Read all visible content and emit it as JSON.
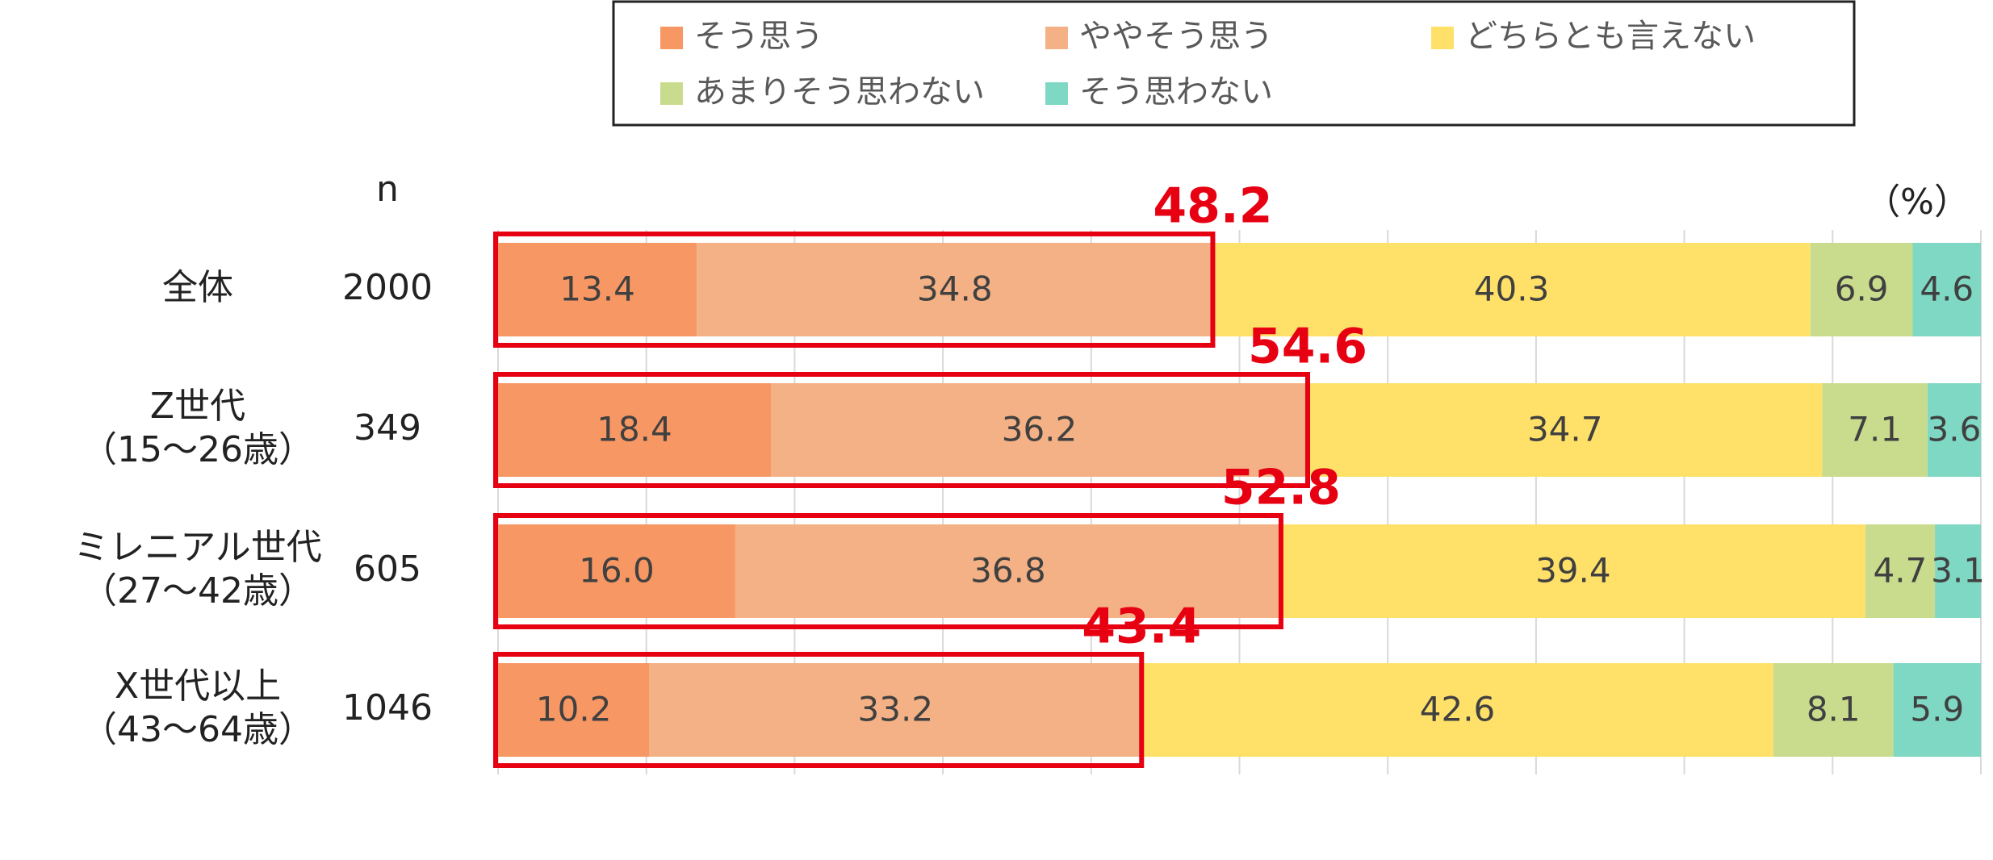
{
  "chart_data": {
    "type": "stacked_barh",
    "categories": [
      [
        "全体"
      ],
      [
        "Z世代",
        "（15〜26歳）"
      ],
      [
        "ミレニアル世代",
        "（27〜42歳）"
      ],
      [
        "X世代以上",
        "（43〜64歳）"
      ]
    ],
    "n_label": "n",
    "n": [
      2000,
      349,
      605,
      1046
    ],
    "unit_label": "（%）",
    "series": [
      {
        "name": "そう思う",
        "color": "#f79763",
        "values": [
          13.4,
          18.4,
          16.0,
          10.2
        ],
        "value_labels": [
          "13.4",
          "18.4",
          "16.0",
          "10.2"
        ]
      },
      {
        "name": "ややそう思う",
        "color": "#f3b185",
        "values": [
          34.8,
          36.2,
          36.8,
          33.2
        ]
      },
      {
        "name": "どちらとも言えない",
        "color": "#ffe169",
        "values": [
          40.3,
          34.7,
          39.4,
          42.6
        ]
      },
      {
        "name": "あまりそう思わない",
        "color": "#c9dc8e",
        "values": [
          6.9,
          7.1,
          4.7,
          8.1
        ]
      },
      {
        "name": "そう思わない",
        "color": "#7fd8c4",
        "values": [
          4.6,
          3.6,
          3.1,
          5.9
        ]
      }
    ],
    "highlight_totals": [
      48.2,
      54.6,
      52.8,
      43.4
    ],
    "highlight_color": "#e60012",
    "xlim": [
      0,
      100
    ],
    "xticks": [
      0,
      10,
      20,
      30,
      40,
      50,
      60,
      70,
      80,
      90,
      100
    ],
    "grid": true
  }
}
